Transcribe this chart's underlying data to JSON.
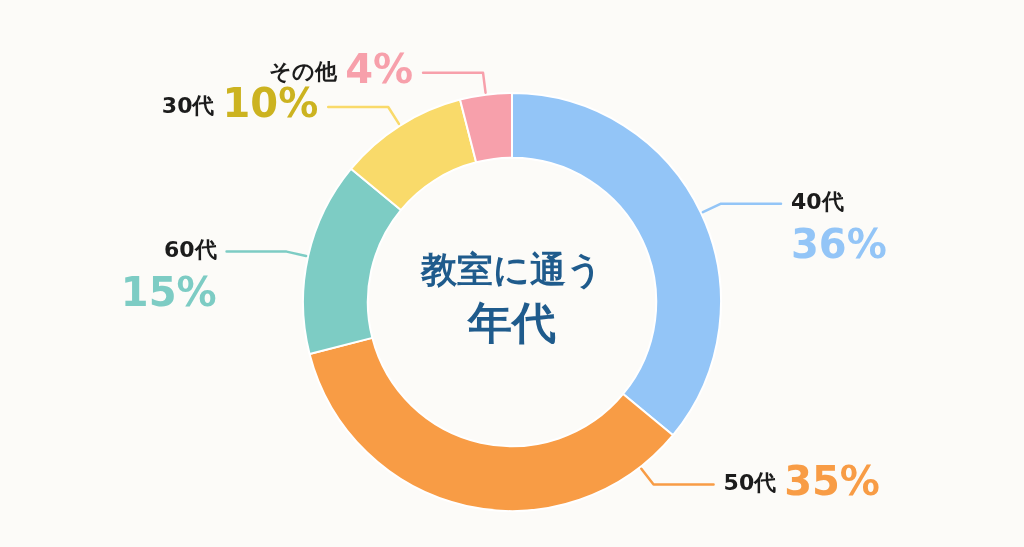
{
  "chart_data": {
    "type": "donut",
    "title": "教室に通う年代",
    "categories": [
      "40代",
      "50代",
      "60代",
      "30代",
      "その他"
    ],
    "values": [
      36,
      35,
      15,
      10,
      4
    ],
    "colors": [
      "#93c5f7",
      "#f89c45",
      "#7dccc4",
      "#f9da6a",
      "#f7a0ab"
    ],
    "value_labels": [
      "36%",
      "35%",
      "15%",
      "10%",
      "4%"
    ]
  }
}
